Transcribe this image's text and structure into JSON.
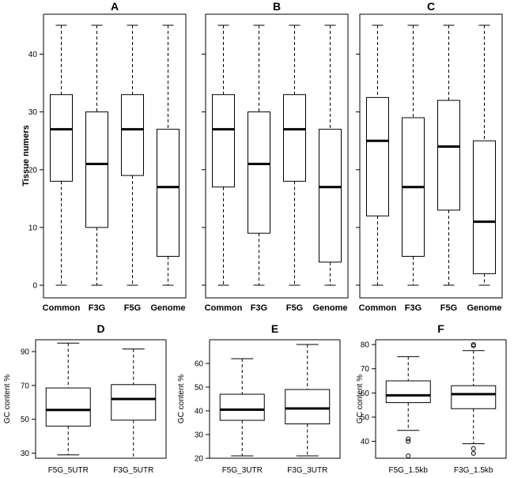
{
  "figure": {
    "background": "#ffffff",
    "line_color": "#000000"
  },
  "chart_data": [
    {
      "id": "A",
      "type": "boxplot",
      "title": "A",
      "ylabel": "Tissue numers",
      "ylim": [
        0,
        45
      ],
      "yticks": [
        0,
        10,
        20,
        30,
        40
      ],
      "show_y_tick_labels": true,
      "categories": [
        "Common",
        "F3G",
        "F5G",
        "Genome"
      ],
      "boxes": [
        {
          "min": 0,
          "q1": 18,
          "median": 27,
          "q3": 33,
          "max": 45,
          "outliers": []
        },
        {
          "min": 0,
          "q1": 10,
          "median": 21,
          "q3": 30,
          "max": 45,
          "outliers": []
        },
        {
          "min": 0,
          "q1": 19,
          "median": 27,
          "q3": 33,
          "max": 45,
          "outliers": []
        },
        {
          "min": 0,
          "q1": 5,
          "median": 17,
          "q3": 27,
          "max": 45,
          "outliers": []
        }
      ]
    },
    {
      "id": "B",
      "type": "boxplot",
      "title": "B",
      "ylabel": "",
      "ylim": [
        0,
        45
      ],
      "yticks": [
        0,
        10,
        20,
        30,
        40
      ],
      "show_y_tick_labels": false,
      "categories": [
        "Common",
        "F3G",
        "F5G",
        "Genome"
      ],
      "boxes": [
        {
          "min": 0,
          "q1": 17,
          "median": 27,
          "q3": 33,
          "max": 45,
          "outliers": []
        },
        {
          "min": 0,
          "q1": 9,
          "median": 21,
          "q3": 30,
          "max": 45,
          "outliers": []
        },
        {
          "min": 0,
          "q1": 18,
          "median": 27,
          "q3": 33,
          "max": 45,
          "outliers": []
        },
        {
          "min": 0,
          "q1": 4,
          "median": 17,
          "q3": 27,
          "max": 45,
          "outliers": []
        }
      ]
    },
    {
      "id": "C",
      "type": "boxplot",
      "title": "C",
      "ylabel": "",
      "ylim": [
        0,
        45
      ],
      "yticks": [
        0,
        10,
        20,
        30,
        40
      ],
      "show_y_tick_labels": false,
      "categories": [
        "Common",
        "F3G",
        "F5G",
        "Genome"
      ],
      "boxes": [
        {
          "min": 0,
          "q1": 12,
          "median": 25,
          "q3": 32.5,
          "max": 45,
          "outliers": []
        },
        {
          "min": 0,
          "q1": 5,
          "median": 17,
          "q3": 29,
          "max": 45,
          "outliers": []
        },
        {
          "min": 0,
          "q1": 13,
          "median": 24,
          "q3": 32,
          "max": 45,
          "outliers": []
        },
        {
          "min": 0,
          "q1": 2,
          "median": 11,
          "q3": 25,
          "max": 45,
          "outliers": []
        }
      ]
    },
    {
      "id": "D",
      "type": "boxplot",
      "title": "D",
      "ylabel": "GC content %",
      "ylim": [
        27,
        97
      ],
      "yticks": [
        30,
        50,
        70,
        90
      ],
      "show_y_tick_labels": true,
      "categories": [
        "F5G_5UTR",
        "F3G_5UTR"
      ],
      "boxes": [
        {
          "min": 29,
          "q1": 46,
          "median": 55.5,
          "q3": 68.5,
          "max": 95,
          "outliers": []
        },
        {
          "min": 27,
          "q1": 49.5,
          "median": 62,
          "q3": 70.5,
          "max": 91.5,
          "outliers": []
        }
      ]
    },
    {
      "id": "E",
      "type": "boxplot",
      "title": "E",
      "ylabel": "GC content %",
      "ylim": [
        20,
        70
      ],
      "yticks": [
        20,
        30,
        40,
        50,
        60
      ],
      "show_y_tick_labels": true,
      "categories": [
        "F5G_3UTR",
        "F3G_3UTR"
      ],
      "boxes": [
        {
          "min": 21,
          "q1": 36,
          "median": 40.5,
          "q3": 47,
          "max": 62,
          "outliers": []
        },
        {
          "min": 21,
          "q1": 34.5,
          "median": 41,
          "q3": 49,
          "max": 68,
          "outliers": []
        }
      ]
    },
    {
      "id": "F",
      "type": "boxplot",
      "title": "F",
      "ylabel": "GC content %",
      "ylim": [
        33,
        82
      ],
      "yticks": [
        40,
        50,
        60,
        70,
        80
      ],
      "show_y_tick_labels": true,
      "categories": [
        "F5G_1.5kb",
        "F3G_1.5kb"
      ],
      "boxes": [
        {
          "min": 44.5,
          "q1": 56,
          "median": 59,
          "q3": 65,
          "max": 75,
          "outliers": [
            41,
            40,
            34
          ]
        },
        {
          "min": 39,
          "q1": 53.5,
          "median": 59.5,
          "q3": 63,
          "max": 77.5,
          "outliers": [
            80,
            79.5,
            37,
            35
          ]
        }
      ]
    }
  ]
}
